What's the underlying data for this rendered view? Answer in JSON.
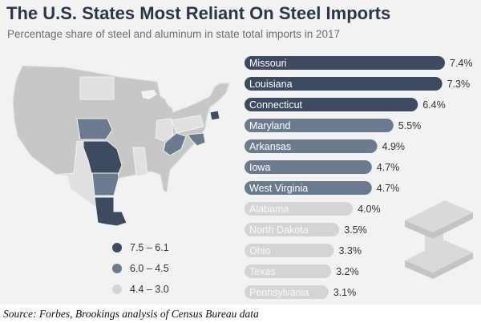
{
  "title": "The U.S. States Most Reliant On Steel Imports",
  "subtitle": "Percentage share of steel and aluminum in state total imports in 2017",
  "source": "Source: Forbes, Brookings analysis of Census Bureau data",
  "colors": {
    "dark": "#3d4a5f",
    "medium": "#6b7a8e",
    "light": "#d4d4d4",
    "map_base": "#c7c7c7",
    "background": "#f2f2f2"
  },
  "legend": [
    {
      "label": "7.5 – 6.1",
      "tier": "dark"
    },
    {
      "label": "6.0 – 4.5",
      "tier": "medium"
    },
    {
      "label": "4.4 – 3.0",
      "tier": "light"
    }
  ],
  "chart_data": {
    "type": "bar",
    "orientation": "horizontal",
    "title": "The U.S. States Most Reliant On Steel Imports",
    "subtitle": "Percentage share of steel and aluminum in state total imports in 2017",
    "unit": "%",
    "xlim": [
      0,
      7.4
    ],
    "categories": [
      "Missouri",
      "Louisiana",
      "Connecticut",
      "Maryland",
      "Arkansas",
      "Iowa",
      "West Virginia",
      "Alabama",
      "North Dakota",
      "Ohio",
      "Texas",
      "Pennsylvania"
    ],
    "values": [
      7.4,
      7.3,
      6.4,
      5.5,
      4.9,
      4.7,
      4.7,
      4.0,
      3.5,
      3.3,
      3.2,
      3.1
    ],
    "value_labels": [
      "7.4%",
      "7.3%",
      "6.4%",
      "5.5%",
      "4.9%",
      "4.7%",
      "4.7%",
      "4.0%",
      "3.5%",
      "3.3%",
      "3.2%",
      "3.1%"
    ],
    "tiers": [
      "dark",
      "dark",
      "dark",
      "medium",
      "medium",
      "medium",
      "medium",
      "light",
      "light",
      "light",
      "light",
      "light"
    ]
  }
}
